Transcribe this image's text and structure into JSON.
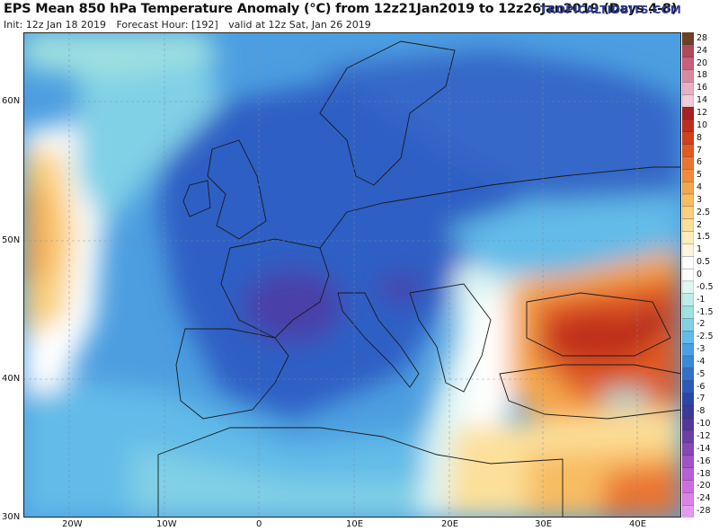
{
  "header": {
    "title": "EPS Mean 850 hPa Temperature Anomaly (°C) from 12z21Jan2019 to 12z26Jan2019 (Days 4-8)",
    "init": "Init: 12z Jan 18 2019",
    "forecast_hour": "Forecast Hour: [192]",
    "valid": "valid at 12z Sat, Jan 26 2019",
    "brand": "TROPICALTIDBITS.COM"
  },
  "map": {
    "lat_labels": [
      "60N",
      "50N",
      "40N",
      "30N"
    ],
    "lon_labels": [
      "20W",
      "10W",
      "0",
      "10E",
      "20E",
      "30E",
      "40E"
    ]
  },
  "colorbar": {
    "levels": [
      "28",
      "24",
      "20",
      "18",
      "16",
      "14",
      "12",
      "10",
      "8",
      "7",
      "6",
      "5",
      "4",
      "3",
      "2.5",
      "2",
      "1.5",
      "1",
      "0.5",
      "0",
      "-0.5",
      "-1",
      "-1.5",
      "-2",
      "-2.5",
      "-3",
      "-4",
      "-5",
      "-6",
      "-7",
      "-8",
      "-10",
      "-12",
      "-14",
      "-16",
      "-18",
      "-20",
      "-24",
      "-28"
    ],
    "colors": [
      "#6b4226",
      "#b04a5a",
      "#c8607a",
      "#d98aa0",
      "#e8b0c4",
      "#f0ccd8",
      "#a82020",
      "#bf2d1e",
      "#d2401c",
      "#e05a22",
      "#ea7430",
      "#f08c3c",
      "#f4a64c",
      "#f8bc62",
      "#fad07c",
      "#fce09a",
      "#fdedba",
      "#fef6dc",
      "#ffffff",
      "#ffffff",
      "#dff6f3",
      "#bfece8",
      "#9fe0e0",
      "#80d0e6",
      "#62bbe8",
      "#48a2e2",
      "#3a88da",
      "#3270cc",
      "#2c5abc",
      "#2a46a6",
      "#3a3a9a",
      "#52389a",
      "#6c3fa8",
      "#8648b8",
      "#a052c8",
      "#b85ed6",
      "#cc6edf",
      "#db82e6",
      "#e69aee"
    ]
  }
}
